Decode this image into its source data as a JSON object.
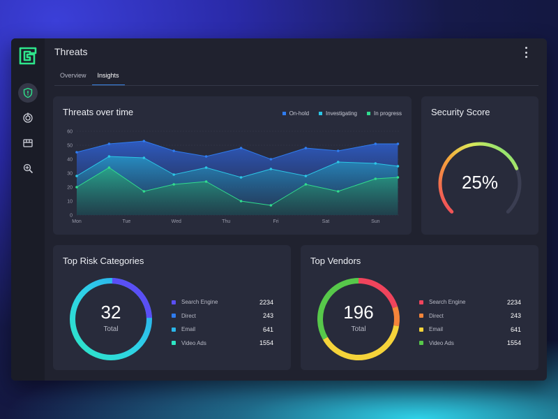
{
  "header": {
    "title": "Threats"
  },
  "tabs": [
    {
      "label": "Overview",
      "active": false
    },
    {
      "label": "Insights",
      "active": true
    }
  ],
  "sidebar": {
    "items": [
      {
        "icon": "shield-icon",
        "active": true
      },
      {
        "icon": "target-icon",
        "active": false
      },
      {
        "icon": "store-icon",
        "active": false
      },
      {
        "icon": "magnify-scan-icon",
        "active": false
      }
    ]
  },
  "threats_chart": {
    "title": "Threats over time",
    "legend": [
      "On-hold",
      "Investigating",
      "In progress"
    ]
  },
  "chart_data": {
    "type": "area",
    "title": "Threats over time",
    "categories": [
      "Mon",
      "Tue",
      "Wed",
      "Thu",
      "Fri",
      "Sat",
      "Sun"
    ],
    "yticks": [
      0,
      10,
      20,
      30,
      40,
      50,
      60
    ],
    "ylim": [
      0,
      60
    ],
    "x": [
      0,
      0.65,
      1.35,
      1.95,
      2.6,
      3.3,
      3.9,
      4.6,
      5.25,
      6.0,
      6.45
    ],
    "series": [
      {
        "name": "On-hold",
        "color": "#2f7cf0",
        "values": [
          45,
          51,
          53,
          46,
          42,
          48,
          40,
          48,
          46,
          51,
          51
        ]
      },
      {
        "name": "Investigating",
        "color": "#2cc6e6",
        "values": [
          28,
          42,
          41,
          29,
          34,
          27,
          33,
          28,
          38,
          37,
          35
        ]
      },
      {
        "name": "In progress",
        "color": "#31dc8e",
        "values": [
          20,
          34,
          17,
          22,
          24,
          10,
          7,
          22,
          17,
          26,
          27
        ]
      }
    ],
    "grid": true,
    "legend_position": "top-right"
  },
  "security_score": {
    "title": "Security Score",
    "value": "25%",
    "level": 0.75
  },
  "risk_categories": {
    "title": "Top Risk Categories",
    "total_value": "32",
    "total_label": "Total",
    "items": [
      {
        "name": "Search Engine",
        "value": "2234",
        "color": "#5a4ff5"
      },
      {
        "name": "Direct",
        "value": "243",
        "color": "#2f7cf0"
      },
      {
        "name": "Email",
        "value": "641",
        "color": "#2bb7ea"
      },
      {
        "name": "Video Ads",
        "value": "1554",
        "color": "#2ee6c4"
      }
    ]
  },
  "vendors": {
    "title": "Top Vendors",
    "total_value": "196",
    "total_label": "Total",
    "items": [
      {
        "name": "Search Engine",
        "value": "2234",
        "color": "#f0445c"
      },
      {
        "name": "Direct",
        "value": "243",
        "color": "#f5853a"
      },
      {
        "name": "Email",
        "value": "641",
        "color": "#f5d33a"
      },
      {
        "name": "Video Ads",
        "value": "1554",
        "color": "#57c84a"
      }
    ]
  }
}
